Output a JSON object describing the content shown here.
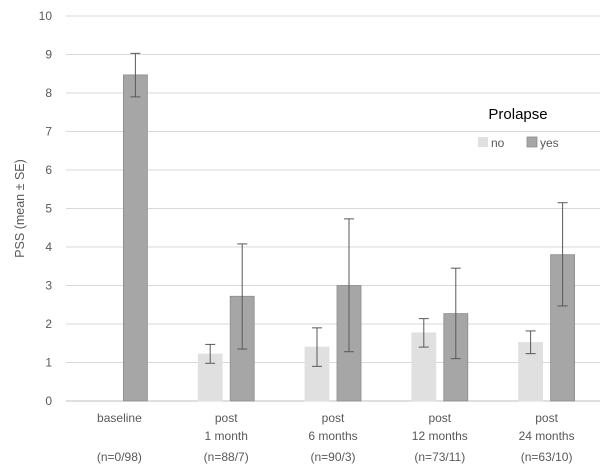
{
  "chart_data": {
    "type": "bar",
    "ylabel": "PSS (mean ± SE)",
    "xlabel": "",
    "ylim": [
      0,
      10
    ],
    "yticks": [
      "0",
      "1",
      "2",
      "3",
      "4",
      "5",
      "6",
      "7",
      "8",
      "9",
      "10"
    ],
    "grid": true,
    "legend": {
      "title": "Prolapse",
      "placement": "right"
    },
    "categories": [
      [
        "baseline",
        "",
        "(n=0/98)"
      ],
      [
        "post",
        "1 month",
        "(n=88/7)"
      ],
      [
        "post",
        "6 months",
        "(n=90/3)"
      ],
      [
        "post",
        "12 months",
        "(n=73/11)"
      ],
      [
        "post",
        "24 months",
        "(n=63/10)"
      ]
    ],
    "series": [
      {
        "name": "no",
        "color": "#e0e0e0",
        "values": [
          null,
          1.22,
          1.4,
          1.77,
          1.52
        ],
        "err_low": [
          null,
          0.98,
          0.9,
          1.4,
          1.23
        ],
        "err_high": [
          null,
          1.47,
          1.9,
          2.14,
          1.82
        ]
      },
      {
        "name": "yes",
        "color": "#a6a6a6",
        "values": [
          8.47,
          2.72,
          3.0,
          2.27,
          3.8
        ],
        "err_low": [
          7.9,
          1.35,
          1.28,
          1.1,
          2.47
        ],
        "err_high": [
          9.03,
          4.08,
          4.73,
          3.45,
          5.15
        ]
      }
    ]
  }
}
